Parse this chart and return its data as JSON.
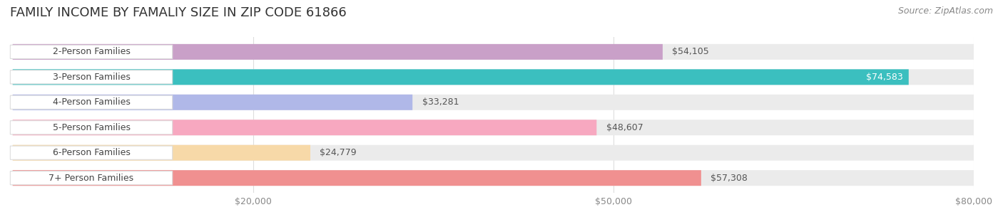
{
  "title": "FAMILY INCOME BY FAMALIY SIZE IN ZIP CODE 61866",
  "source": "Source: ZipAtlas.com",
  "categories": [
    "2-Person Families",
    "3-Person Families",
    "4-Person Families",
    "5-Person Families",
    "6-Person Families",
    "7+ Person Families"
  ],
  "values": [
    54105,
    74583,
    33281,
    48607,
    24779,
    57308
  ],
  "bar_colors": [
    "#c9a0c8",
    "#3bbfbf",
    "#b0b8e8",
    "#f7a8c0",
    "#f7d9a8",
    "#f09090"
  ],
  "bar_bg_color": "#f0f0f0",
  "label_values": [
    "$54,105",
    "$74,583",
    "$33,281",
    "$48,607",
    "$24,779",
    "$57,308"
  ],
  "xlim": [
    0,
    80000
  ],
  "xticks": [
    0,
    20000,
    50000,
    80000
  ],
  "xtick_labels": [
    "",
    "$20,000",
    "$50,000",
    "$80,000"
  ],
  "background_color": "#ffffff",
  "title_fontsize": 13,
  "label_fontsize": 9,
  "tick_fontsize": 9,
  "source_fontsize": 9
}
